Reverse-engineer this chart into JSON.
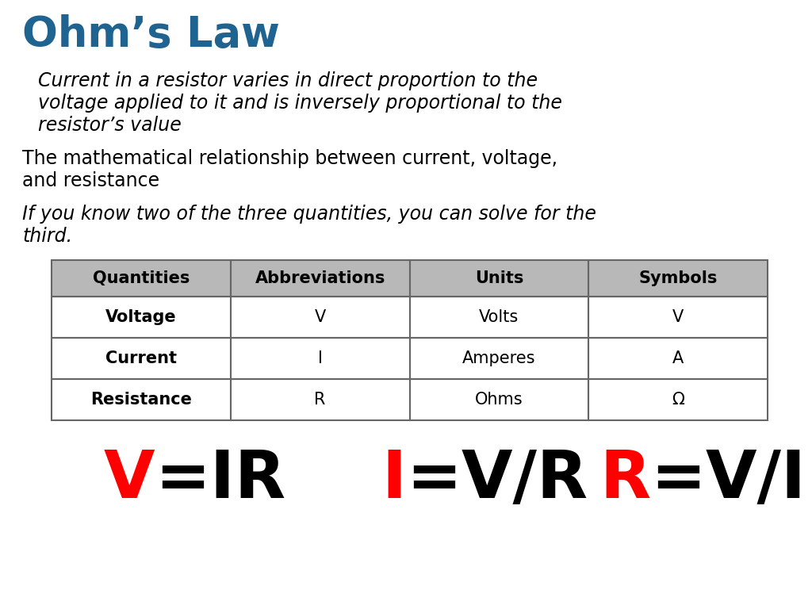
{
  "title": "Ohm’s Law",
  "title_color": "#1f6391",
  "title_fontsize": 38,
  "italic_line1": "Current in a resistor varies in direct proportion to the",
  "italic_line2": "voltage applied to it and is inversely proportional to the",
  "italic_line3": "resistor’s value",
  "normal_line1": "The mathematical relationship between current, voltage,",
  "normal_line2": "and resistance",
  "italic2_line1": "If you know two of the three quantities, you can solve for the",
  "italic2_line2": "third.",
  "table_headers": [
    "Quantities",
    "Abbreviations",
    "Units",
    "Symbols"
  ],
  "table_rows": [
    [
      "Voltage",
      "V",
      "Volts",
      "V"
    ],
    [
      "Current",
      "I",
      "Amperes",
      "A"
    ],
    [
      "Resistance",
      "R",
      "Ohms",
      "Ω"
    ]
  ],
  "header_bg": "#b8b8b8",
  "row_bg": "#ffffff",
  "formula_1_red": "V",
  "formula_1_black": "=IR",
  "formula_2_red": "I",
  "formula_2_black": "=V/R",
  "formula_3_red": "R",
  "formula_3_black": "=V/I",
  "formula_color_red": "#ff0000",
  "formula_color_black": "#000000",
  "bg_color": "#ffffff",
  "text_color": "#000000",
  "formula_fontsize": 60,
  "body_fontsize": 17,
  "table_fontsize": 15
}
